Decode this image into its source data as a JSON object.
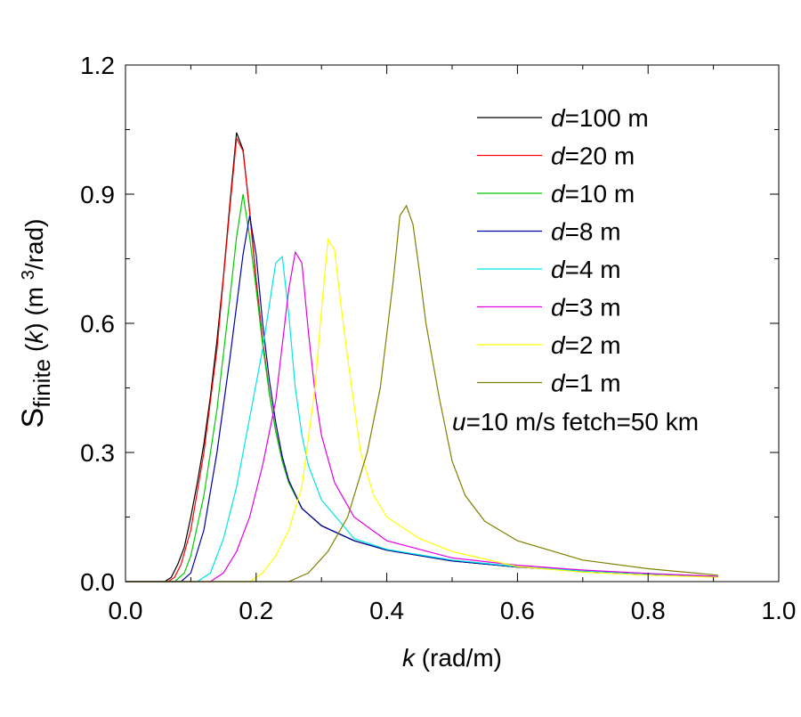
{
  "chart_data": {
    "type": "line",
    "title": "",
    "xlabel": {
      "var": "k",
      "rest": " (rad/m)"
    },
    "ylabel": {
      "var": "S",
      "sub": "finite",
      "mid1": " (",
      "k": "k",
      "mid2": ") (m ",
      "sup": "3",
      "end": "/rad)"
    },
    "xlim": [
      0,
      1.0
    ],
    "ylim": [
      0,
      1.2
    ],
    "xticks": [
      "0.0",
      "0.2",
      "0.4",
      "0.6",
      "0.8",
      "1.0"
    ],
    "yticks": [
      "0.0",
      "0.3",
      "0.6",
      "0.9",
      "1.2"
    ],
    "grid": false,
    "legend_position": "top-right",
    "annotation": {
      "var": "u",
      "rest": "=10 m/s fetch=50 km"
    },
    "series": [
      {
        "name": "d=100 m",
        "label_var": "d",
        "label_rest": "=100 m",
        "color": "#000000",
        "points": [
          [
            0.06,
            0
          ],
          [
            0.07,
            0.01
          ],
          [
            0.08,
            0.04
          ],
          [
            0.09,
            0.08
          ],
          [
            0.1,
            0.15
          ],
          [
            0.11,
            0.23
          ],
          [
            0.12,
            0.32
          ],
          [
            0.13,
            0.43
          ],
          [
            0.14,
            0.56
          ],
          [
            0.15,
            0.71
          ],
          [
            0.16,
            0.88
          ],
          [
            0.17,
            1.043
          ],
          [
            0.18,
            1.003
          ],
          [
            0.19,
            0.86
          ],
          [
            0.2,
            0.7
          ],
          [
            0.21,
            0.56
          ],
          [
            0.22,
            0.44
          ],
          [
            0.23,
            0.35
          ],
          [
            0.24,
            0.28
          ],
          [
            0.25,
            0.23
          ],
          [
            0.27,
            0.17
          ],
          [
            0.3,
            0.13
          ],
          [
            0.35,
            0.095
          ],
          [
            0.4,
            0.073
          ],
          [
            0.5,
            0.048
          ],
          [
            0.6,
            0.034
          ],
          [
            0.7,
            0.025
          ],
          [
            0.8,
            0.018
          ],
          [
            0.907,
            0.012
          ]
        ]
      },
      {
        "name": "d=20 m",
        "label_var": "d",
        "label_rest": "=20 m",
        "color": "#ff0000",
        "points": [
          [
            0.065,
            0
          ],
          [
            0.075,
            0.01
          ],
          [
            0.085,
            0.04
          ],
          [
            0.1,
            0.12
          ],
          [
            0.12,
            0.3
          ],
          [
            0.14,
            0.54
          ],
          [
            0.16,
            0.87
          ],
          [
            0.17,
            1.03
          ],
          [
            0.18,
            1.0
          ],
          [
            0.19,
            0.86
          ],
          [
            0.2,
            0.7
          ],
          [
            0.21,
            0.56
          ],
          [
            0.22,
            0.44
          ],
          [
            0.23,
            0.35
          ],
          [
            0.24,
            0.28
          ],
          [
            0.25,
            0.23
          ],
          [
            0.27,
            0.17
          ],
          [
            0.3,
            0.13
          ],
          [
            0.35,
            0.095
          ],
          [
            0.4,
            0.073
          ],
          [
            0.5,
            0.048
          ],
          [
            0.6,
            0.034
          ],
          [
            0.7,
            0.025
          ],
          [
            0.8,
            0.018
          ],
          [
            0.907,
            0.012
          ]
        ]
      },
      {
        "name": "d=10 m",
        "label_var": "d",
        "label_rest": "=10 m",
        "color": "#00cc00",
        "points": [
          [
            0.075,
            0
          ],
          [
            0.09,
            0.02
          ],
          [
            0.1,
            0.06
          ],
          [
            0.12,
            0.2
          ],
          [
            0.14,
            0.4
          ],
          [
            0.16,
            0.66
          ],
          [
            0.17,
            0.8
          ],
          [
            0.18,
            0.9
          ],
          [
            0.19,
            0.8
          ],
          [
            0.2,
            0.68
          ],
          [
            0.21,
            0.55
          ],
          [
            0.22,
            0.44
          ],
          [
            0.23,
            0.35
          ],
          [
            0.24,
            0.28
          ],
          [
            0.25,
            0.23
          ],
          [
            0.27,
            0.17
          ],
          [
            0.3,
            0.13
          ],
          [
            0.35,
            0.095
          ],
          [
            0.4,
            0.073
          ],
          [
            0.5,
            0.048
          ],
          [
            0.6,
            0.034
          ],
          [
            0.7,
            0.025
          ],
          [
            0.8,
            0.018
          ],
          [
            0.907,
            0.012
          ]
        ]
      },
      {
        "name": "d=8 m",
        "label_var": "d",
        "label_rest": "=8 m",
        "color": "#0000aa",
        "points": [
          [
            0.085,
            0
          ],
          [
            0.1,
            0.02
          ],
          [
            0.12,
            0.12
          ],
          [
            0.14,
            0.3
          ],
          [
            0.16,
            0.52
          ],
          [
            0.18,
            0.76
          ],
          [
            0.19,
            0.85
          ],
          [
            0.2,
            0.76
          ],
          [
            0.21,
            0.6
          ],
          [
            0.22,
            0.47
          ],
          [
            0.23,
            0.37
          ],
          [
            0.24,
            0.29
          ],
          [
            0.25,
            0.235
          ],
          [
            0.27,
            0.17
          ],
          [
            0.3,
            0.13
          ],
          [
            0.35,
            0.095
          ],
          [
            0.4,
            0.073
          ],
          [
            0.5,
            0.048
          ],
          [
            0.6,
            0.034
          ],
          [
            0.7,
            0.025
          ],
          [
            0.8,
            0.018
          ],
          [
            0.907,
            0.012
          ]
        ]
      },
      {
        "name": "d=4 m",
        "label_var": "d",
        "label_rest": "=4 m",
        "color": "#00e5e5",
        "points": [
          [
            0.11,
            0
          ],
          [
            0.13,
            0.02
          ],
          [
            0.15,
            0.1
          ],
          [
            0.17,
            0.22
          ],
          [
            0.19,
            0.38
          ],
          [
            0.21,
            0.54
          ],
          [
            0.23,
            0.74
          ],
          [
            0.24,
            0.755
          ],
          [
            0.25,
            0.62
          ],
          [
            0.26,
            0.45
          ],
          [
            0.27,
            0.34
          ],
          [
            0.28,
            0.27
          ],
          [
            0.3,
            0.19
          ],
          [
            0.35,
            0.1
          ],
          [
            0.4,
            0.075
          ],
          [
            0.5,
            0.05
          ],
          [
            0.6,
            0.035
          ],
          [
            0.7,
            0.025
          ],
          [
            0.8,
            0.018
          ],
          [
            0.907,
            0.012
          ]
        ]
      },
      {
        "name": "d=3 m",
        "label_var": "d",
        "label_rest": "=3 m",
        "color": "#e500e5",
        "points": [
          [
            0.13,
            0
          ],
          [
            0.15,
            0.02
          ],
          [
            0.17,
            0.07
          ],
          [
            0.19,
            0.15
          ],
          [
            0.21,
            0.27
          ],
          [
            0.23,
            0.42
          ],
          [
            0.25,
            0.68
          ],
          [
            0.26,
            0.765
          ],
          [
            0.27,
            0.74
          ],
          [
            0.28,
            0.58
          ],
          [
            0.29,
            0.44
          ],
          [
            0.3,
            0.34
          ],
          [
            0.32,
            0.23
          ],
          [
            0.35,
            0.15
          ],
          [
            0.4,
            0.095
          ],
          [
            0.5,
            0.055
          ],
          [
            0.6,
            0.038
          ],
          [
            0.7,
            0.027
          ],
          [
            0.8,
            0.019
          ],
          [
            0.907,
            0.012
          ]
        ]
      },
      {
        "name": "d=2 m",
        "label_var": "d",
        "label_rest": "=2 m",
        "color": "#ffff00",
        "points": [
          [
            0.19,
            0
          ],
          [
            0.21,
            0.02
          ],
          [
            0.23,
            0.06
          ],
          [
            0.25,
            0.12
          ],
          [
            0.27,
            0.22
          ],
          [
            0.29,
            0.45
          ],
          [
            0.3,
            0.63
          ],
          [
            0.31,
            0.795
          ],
          [
            0.32,
            0.77
          ],
          [
            0.33,
            0.64
          ],
          [
            0.34,
            0.52
          ],
          [
            0.35,
            0.41
          ],
          [
            0.36,
            0.3
          ],
          [
            0.38,
            0.2
          ],
          [
            0.4,
            0.15
          ],
          [
            0.45,
            0.1
          ],
          [
            0.5,
            0.07
          ],
          [
            0.6,
            0.035
          ],
          [
            0.7,
            0.022
          ],
          [
            0.8,
            0.015
          ],
          [
            0.907,
            0.01
          ]
        ]
      },
      {
        "name": "d=1 m",
        "label_var": "d",
        "label_rest": "=1 m",
        "color": "#808000",
        "points": [
          [
            0.25,
            0
          ],
          [
            0.28,
            0.02
          ],
          [
            0.31,
            0.07
          ],
          [
            0.34,
            0.15
          ],
          [
            0.37,
            0.3
          ],
          [
            0.39,
            0.45
          ],
          [
            0.41,
            0.7
          ],
          [
            0.42,
            0.85
          ],
          [
            0.43,
            0.873
          ],
          [
            0.44,
            0.83
          ],
          [
            0.45,
            0.72
          ],
          [
            0.46,
            0.6
          ],
          [
            0.48,
            0.43
          ],
          [
            0.5,
            0.28
          ],
          [
            0.52,
            0.2
          ],
          [
            0.55,
            0.14
          ],
          [
            0.6,
            0.095
          ],
          [
            0.7,
            0.05
          ],
          [
            0.8,
            0.03
          ],
          [
            0.907,
            0.015
          ]
        ]
      }
    ]
  }
}
